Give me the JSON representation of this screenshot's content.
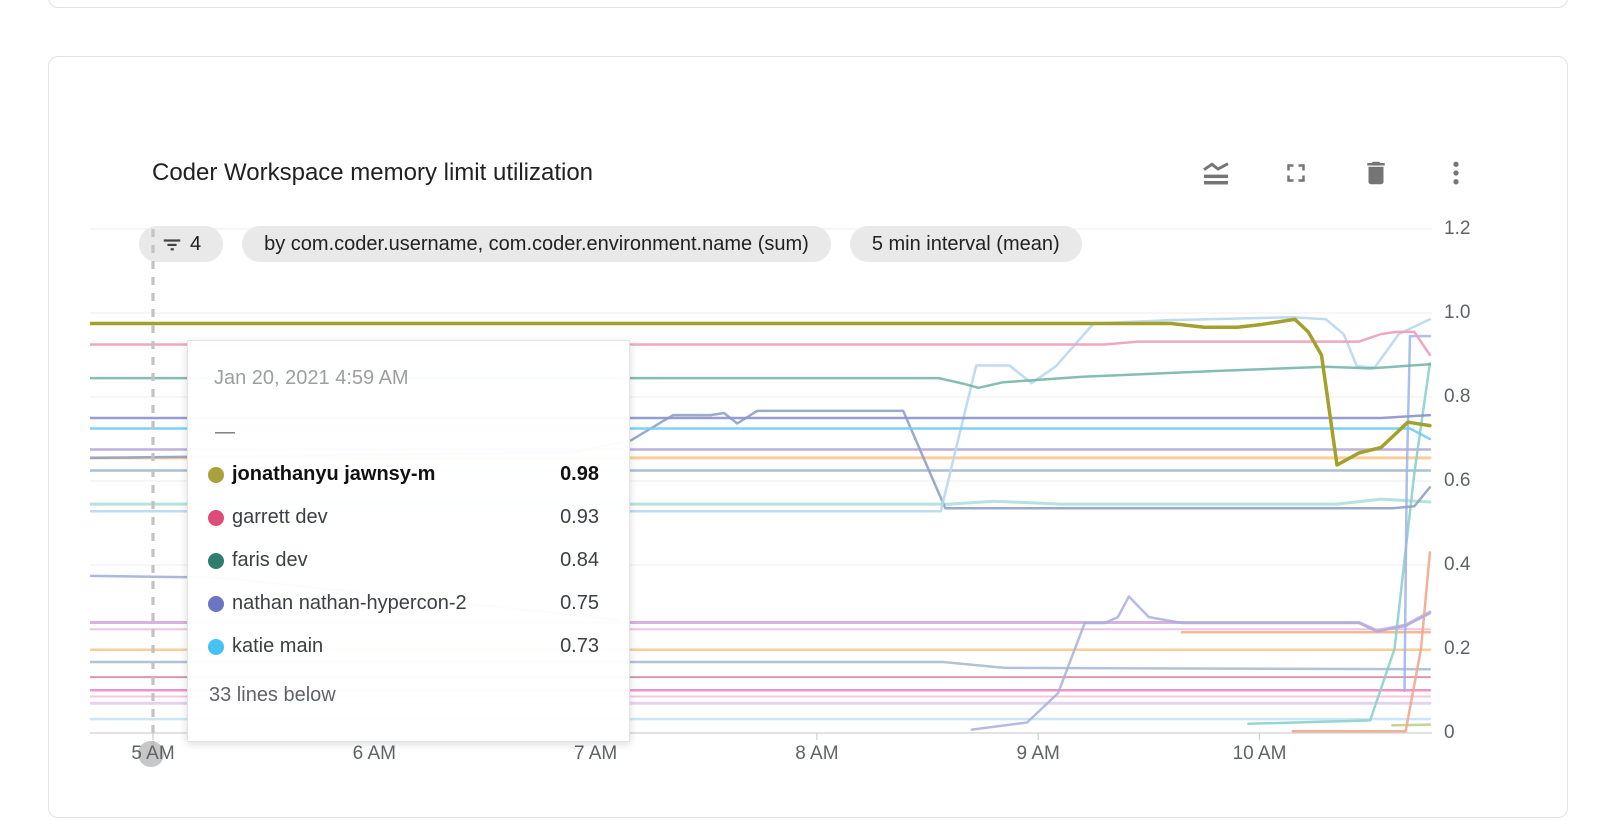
{
  "colors": {
    "accent_cursor": "#c2c2c2",
    "grid": "#ececec",
    "axis": "#d8d8d8",
    "icon": "#757575",
    "chip_bg": "#e9e9e9"
  },
  "header": {
    "title": "Coder Workspace memory limit utilization",
    "icons": [
      {
        "name": "area-chart-icon"
      },
      {
        "name": "fullscreen-icon"
      },
      {
        "name": "delete-icon"
      },
      {
        "name": "more-vert-icon"
      }
    ]
  },
  "chips": {
    "filter_count": "4",
    "group_by": "by com.coder.username, com.coder.environment.name (sum)",
    "interval": "5 min interval (mean)"
  },
  "tooltip": {
    "timestamp": "Jan 20, 2021 4:59 AM",
    "no_value": "—",
    "rows": [
      {
        "name": "jonathanyu jawnsy-m",
        "value": "0.98",
        "color": "#a9a23a",
        "emphasis": true
      },
      {
        "name": "garrett dev",
        "value": "0.93",
        "color": "#e04c7a",
        "emphasis": false
      },
      {
        "name": "faris dev",
        "value": "0.84",
        "color": "#2f7d6d",
        "emphasis": false
      },
      {
        "name": "nathan nathan-hypercon-2",
        "value": "0.75",
        "color": "#6a76c2",
        "emphasis": false
      },
      {
        "name": "katie main",
        "value": "0.73",
        "color": "#45c1f2",
        "emphasis": false
      }
    ],
    "footer": "33 lines below"
  },
  "chart_data": {
    "type": "line",
    "title": "Coder Workspace memory limit utilization",
    "xlabel": "",
    "ylabel": "",
    "ylim": [
      0,
      1.2
    ],
    "x_hour_range": [
      4.715,
      10.77
    ],
    "grid": "horizontal",
    "legend_position": "tooltip",
    "y_ticks": [
      {
        "v": 1.2,
        "label": "1.2"
      },
      {
        "v": 1.0,
        "label": "1.0"
      },
      {
        "v": 0.8,
        "label": "0.8"
      },
      {
        "v": 0.6,
        "label": "0.6"
      },
      {
        "v": 0.4,
        "label": "0.4"
      },
      {
        "v": 0.2,
        "label": "0.2"
      },
      {
        "v": 0.0,
        "label": "0"
      }
    ],
    "x_ticks": [
      {
        "h": 5,
        "label": "5 AM"
      },
      {
        "h": 6,
        "label": "6 AM"
      },
      {
        "h": 7,
        "label": "7 AM"
      },
      {
        "h": 8,
        "label": "8 AM"
      },
      {
        "h": 9,
        "label": "9 AM"
      },
      {
        "h": 10,
        "label": "10 AM"
      }
    ],
    "cursor": {
      "hour": 5.0,
      "label": "Jan 20, 2021 4:59 AM"
    },
    "series": [
      {
        "name": "lavender-flat",
        "color": "#b1a3d6",
        "width": 2.5,
        "opacity": 0.85,
        "points": [
          [
            4.715,
            0.675
          ],
          [
            10.77,
            0.675
          ]
        ]
      },
      {
        "name": "amber-flat",
        "color": "#f8c98e",
        "width": 3,
        "opacity": 0.9,
        "points": [
          [
            4.715,
            0.655
          ],
          [
            10.77,
            0.655
          ]
        ]
      },
      {
        "name": "steel-flat",
        "color": "#9db1cf",
        "width": 2.5,
        "opacity": 0.85,
        "points": [
          [
            4.715,
            0.625
          ],
          [
            10.77,
            0.625
          ]
        ]
      },
      {
        "name": "pale-teal-flat",
        "color": "#a3dbd3",
        "width": 3,
        "opacity": 0.8,
        "points": [
          [
            4.715,
            0.545
          ],
          [
            8.6,
            0.545
          ],
          [
            8.8,
            0.552
          ],
          [
            9.1,
            0.545
          ],
          [
            10.35,
            0.545
          ],
          [
            10.55,
            0.557
          ],
          [
            10.77,
            0.55
          ]
        ]
      },
      {
        "name": "steel-left",
        "color": "#9cadd4",
        "width": 2.5,
        "opacity": 0.85,
        "points": [
          [
            4.715,
            0.374
          ],
          [
            5.3,
            0.37
          ],
          [
            7.1,
            0.27
          ]
        ]
      },
      {
        "name": "plum-flat",
        "color": "#d1a5dc",
        "width": 3,
        "opacity": 0.85,
        "points": [
          [
            4.715,
            0.263
          ],
          [
            10.45,
            0.263
          ],
          [
            10.53,
            0.244
          ],
          [
            10.66,
            0.257
          ],
          [
            10.77,
            0.288
          ]
        ]
      },
      {
        "name": "magenta-under",
        "color": "#e9b5da",
        "width": 2,
        "opacity": 0.8,
        "points": [
          [
            4.715,
            0.247
          ],
          [
            10.77,
            0.247
          ]
        ]
      },
      {
        "name": "orange-late",
        "color": "#f4b189",
        "width": 2.5,
        "opacity": 0.9,
        "points": [
          [
            9.65,
            0.24
          ],
          [
            10.77,
            0.24
          ]
        ]
      },
      {
        "name": "amber-low",
        "color": "#f8c98e",
        "width": 2.5,
        "opacity": 0.9,
        "points": [
          [
            4.715,
            0.198
          ],
          [
            10.77,
            0.198
          ]
        ]
      },
      {
        "name": "slate-low",
        "color": "#a7b6d4",
        "width": 2.5,
        "opacity": 0.85,
        "points": [
          [
            4.715,
            0.169
          ],
          [
            8.57,
            0.169
          ],
          [
            8.85,
            0.155
          ],
          [
            10.77,
            0.152
          ]
        ]
      },
      {
        "name": "crimson-low",
        "color": "#d2879e",
        "width": 2,
        "opacity": 0.85,
        "points": [
          [
            4.715,
            0.133
          ],
          [
            10.77,
            0.133
          ]
        ]
      },
      {
        "name": "magenta-low",
        "color": "#eb81c3",
        "width": 2.5,
        "opacity": 0.85,
        "points": [
          [
            4.715,
            0.102
          ],
          [
            10.77,
            0.102
          ]
        ]
      },
      {
        "name": "pink-low",
        "color": "#f5bed3",
        "width": 2,
        "opacity": 0.85,
        "points": [
          [
            4.715,
            0.087
          ],
          [
            10.77,
            0.087
          ]
        ]
      },
      {
        "name": "lavender-low",
        "color": "#ddc7ee",
        "width": 3,
        "opacity": 0.8,
        "points": [
          [
            4.715,
            0.071
          ],
          [
            10.77,
            0.071
          ]
        ]
      },
      {
        "name": "pale-blue-low",
        "color": "#c5e3f7",
        "width": 2.5,
        "opacity": 0.9,
        "points": [
          [
            4.715,
            0.033
          ],
          [
            10.77,
            0.033
          ]
        ]
      },
      {
        "name": "green-end",
        "color": "#b9d08f",
        "width": 2.5,
        "opacity": 0.9,
        "points": [
          [
            10.6,
            0.018
          ],
          [
            10.77,
            0.02
          ]
        ]
      },
      {
        "name": "salmon-end",
        "color": "#f3a78c",
        "width": 2.5,
        "opacity": 0.9,
        "points": [
          [
            10.15,
            0.004
          ],
          [
            10.66,
            0.004
          ],
          [
            10.73,
            0.2
          ],
          [
            10.77,
            0.43
          ]
        ]
      },
      {
        "name": "teal-steep-end",
        "color": "#8cd1c9",
        "width": 2.5,
        "opacity": 0.9,
        "points": [
          [
            9.95,
            0.022
          ],
          [
            10.5,
            0.03
          ],
          [
            10.61,
            0.2
          ],
          [
            10.7,
            0.62
          ],
          [
            10.77,
            0.88
          ]
        ]
      },
      {
        "name": "periwinkle-bump",
        "color": "#a8b0da",
        "width": 2.5,
        "opacity": 0.85,
        "points": [
          [
            8.7,
            0.008
          ],
          [
            8.95,
            0.025
          ],
          [
            9.09,
            0.095
          ],
          [
            9.21,
            0.262
          ],
          [
            9.3,
            0.262
          ],
          [
            9.36,
            0.276
          ],
          [
            9.41,
            0.325
          ],
          [
            9.5,
            0.276
          ],
          [
            9.65,
            0.262
          ],
          [
            10.45,
            0.262
          ],
          [
            10.53,
            0.242
          ],
          [
            10.66,
            0.255
          ],
          [
            10.77,
            0.285
          ]
        ]
      },
      {
        "name": "blue-end-vertical",
        "color": "#9db4e6",
        "width": 2.5,
        "opacity": 0.85,
        "points": [
          [
            10.655,
            0.1
          ],
          [
            10.665,
            0.6
          ],
          [
            10.68,
            0.945
          ],
          [
            10.77,
            0.945
          ]
        ]
      },
      {
        "name": "slate-zigzag",
        "color": "#91a1c3",
        "width": 2.5,
        "opacity": 0.9,
        "points": [
          [
            4.715,
            0.655
          ],
          [
            6.9,
            0.668
          ],
          [
            7.16,
            0.697
          ],
          [
            7.35,
            0.757
          ],
          [
            7.52,
            0.757
          ],
          [
            7.58,
            0.762
          ],
          [
            7.64,
            0.737
          ],
          [
            7.73,
            0.767
          ],
          [
            8.39,
            0.767
          ],
          [
            8.58,
            0.535
          ],
          [
            10.6,
            0.535
          ],
          [
            10.7,
            0.54
          ],
          [
            10.77,
            0.585
          ]
        ]
      },
      {
        "name": "pale-blue-riser",
        "color": "#b7d7f0",
        "width": 2.5,
        "opacity": 0.9,
        "points": [
          [
            4.715,
            0.528
          ],
          [
            8.56,
            0.528
          ],
          [
            8.72,
            0.875
          ],
          [
            8.87,
            0.875
          ],
          [
            8.97,
            0.833
          ],
          [
            9.08,
            0.873
          ],
          [
            9.25,
            0.975
          ],
          [
            9.6,
            0.983
          ],
          [
            10.15,
            0.99
          ],
          [
            10.3,
            0.985
          ],
          [
            10.38,
            0.95
          ],
          [
            10.44,
            0.873
          ],
          [
            10.52,
            0.87
          ],
          [
            10.63,
            0.95
          ],
          [
            10.77,
            0.985
          ]
        ]
      },
      {
        "name": "katie main",
        "color": "#6ecdf5",
        "width": 2.5,
        "opacity": 0.9,
        "points": [
          [
            4.715,
            0.725
          ],
          [
            10.68,
            0.725
          ],
          [
            10.77,
            0.7
          ]
        ]
      },
      {
        "name": "nathan nathan-hypercon-2",
        "color": "#8a94cb",
        "width": 2.5,
        "opacity": 0.9,
        "points": [
          [
            4.715,
            0.75
          ],
          [
            10.55,
            0.75
          ],
          [
            10.77,
            0.757
          ]
        ]
      },
      {
        "name": "faris dev",
        "color": "#6fb3a4",
        "width": 2.5,
        "opacity": 0.85,
        "points": [
          [
            4.715,
            0.845
          ],
          [
            8.55,
            0.845
          ],
          [
            8.66,
            0.832
          ],
          [
            8.73,
            0.822
          ],
          [
            8.84,
            0.835
          ],
          [
            9.2,
            0.848
          ],
          [
            9.8,
            0.862
          ],
          [
            10.3,
            0.872
          ],
          [
            10.5,
            0.868
          ],
          [
            10.77,
            0.878
          ]
        ]
      },
      {
        "name": "garrett dev",
        "color": "#ef9cb8",
        "width": 2.5,
        "opacity": 0.9,
        "points": [
          [
            4.715,
            0.925
          ],
          [
            9.3,
            0.925
          ],
          [
            9.45,
            0.932
          ],
          [
            10.45,
            0.932
          ],
          [
            10.55,
            0.95
          ],
          [
            10.62,
            0.955
          ],
          [
            10.7,
            0.955
          ],
          [
            10.77,
            0.9
          ]
        ]
      },
      {
        "name": "jonathanyu jawnsy-m",
        "color": "#a4a02c",
        "width": 3.5,
        "opacity": 1,
        "points": [
          [
            4.715,
            0.975
          ],
          [
            9.6,
            0.975
          ],
          [
            9.75,
            0.966
          ],
          [
            9.9,
            0.966
          ],
          [
            10.0,
            0.972
          ],
          [
            10.16,
            0.985
          ],
          [
            10.22,
            0.955
          ],
          [
            10.28,
            0.9
          ],
          [
            10.35,
            0.638
          ],
          [
            10.45,
            0.667
          ],
          [
            10.55,
            0.68
          ],
          [
            10.67,
            0.74
          ],
          [
            10.77,
            0.732
          ]
        ]
      }
    ]
  }
}
